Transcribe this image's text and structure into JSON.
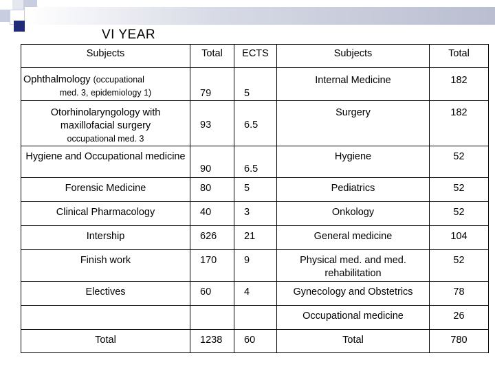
{
  "title": "VI YEAR",
  "colors": {
    "banner": "#b9bed0",
    "squares": [
      "#1f2a78",
      "#c9cde0",
      "#e6e8f0"
    ]
  },
  "headers": [
    "Subjects",
    "Total",
    "ECTS",
    "Subjects",
    "Total"
  ],
  "rows": [
    {
      "left_main": "Ophthalmology",
      "left_note": "(occupational",
      "left_line2": "med. 3, epidemiology 1)",
      "total": "79",
      "ects": "5",
      "right_subject": "Internal Medicine",
      "right_total": "182"
    },
    {
      "left_main": "Otorhinolaryngology with maxillofacial surgery",
      "left_note": "occupational med. 3",
      "total": "93",
      "ects": "6.5",
      "right_subject": "Surgery",
      "right_total": "182"
    },
    {
      "left_main": "Hygiene and Occupational medicine",
      "total": "90",
      "ects": "6.5",
      "right_subject": "Hygiene",
      "right_total": "52"
    },
    {
      "left_main": "Forensic Medicine",
      "total": "80",
      "ects": "5",
      "right_subject": "Pediatrics",
      "right_total": "52"
    },
    {
      "left_main": "Clinical Pharmacology",
      "total": "40",
      "ects": "3",
      "right_subject": "Onkology",
      "right_total": "52"
    },
    {
      "left_main": "Intership",
      "total": "626",
      "ects": "21",
      "right_subject": "General medicine",
      "right_total": "104"
    },
    {
      "left_main": "Finish work",
      "total": "170",
      "ects": "9",
      "right_subject": "Physical med. and med. rehabilitation",
      "right_total": "52"
    },
    {
      "left_main": "Electives",
      "total": "60",
      "ects": "4",
      "right_subject": "Gynecology and Obstetrics",
      "right_total": "78"
    },
    {
      "left_main": "",
      "total": "",
      "ects": "",
      "right_subject": "Occupational medicine",
      "right_total": "26"
    },
    {
      "left_main": "Total",
      "total": "1238",
      "ects": "60",
      "right_subject": "Total",
      "right_total": "780"
    }
  ]
}
